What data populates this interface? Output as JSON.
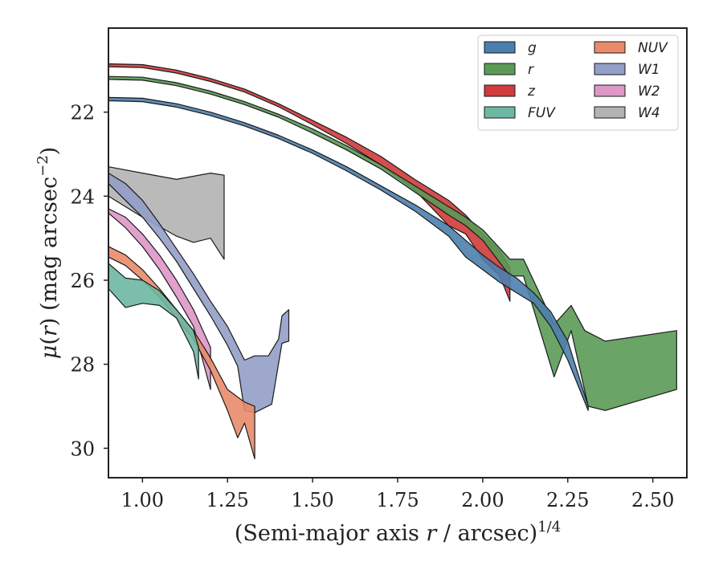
{
  "chart_data": {
    "type": "area",
    "xlabel": "(Semi-major axis r / arcsec)",
    "xlabel_parts": {
      "pre": "(Semi-major axis ",
      "var": "r",
      "post": " / arcsec)",
      "sup": "1/4"
    },
    "ylabel_parts": {
      "mu": "μ",
      "var": "r",
      "post": " (mag arcsec",
      "sup": "−2",
      "close": ")"
    },
    "xlim": [
      0.9,
      2.6
    ],
    "ylim": [
      30.7,
      20.0
    ],
    "y_inverted": true,
    "xticks": [
      "1.00",
      "1.25",
      "1.50",
      "1.75",
      "2.00",
      "2.25",
      "2.50"
    ],
    "yticks": [
      "22",
      "24",
      "26",
      "28",
      "30"
    ],
    "legend_position": "top-right",
    "series": [
      {
        "name": "g",
        "color": "#4c7fad",
        "upper": [
          [
            0.9,
            21.65
          ],
          [
            1.0,
            21.67
          ],
          [
            1.1,
            21.8
          ],
          [
            1.2,
            22.0
          ],
          [
            1.3,
            22.25
          ],
          [
            1.4,
            22.55
          ],
          [
            1.5,
            22.9
          ],
          [
            1.6,
            23.3
          ],
          [
            1.7,
            23.75
          ],
          [
            1.8,
            24.2
          ],
          [
            1.9,
            24.7
          ],
          [
            1.95,
            25.05
          ],
          [
            2.0,
            25.4
          ],
          [
            2.05,
            25.7
          ],
          [
            2.1,
            25.95
          ],
          [
            2.15,
            26.3
          ],
          [
            2.2,
            26.75
          ],
          [
            2.25,
            27.45
          ],
          [
            2.31,
            29.0
          ]
        ],
        "lower": [
          [
            0.9,
            21.73
          ],
          [
            1.0,
            21.75
          ],
          [
            1.1,
            21.88
          ],
          [
            1.2,
            22.08
          ],
          [
            1.3,
            22.33
          ],
          [
            1.4,
            22.63
          ],
          [
            1.5,
            22.98
          ],
          [
            1.6,
            23.4
          ],
          [
            1.7,
            23.85
          ],
          [
            1.8,
            24.35
          ],
          [
            1.9,
            24.95
          ],
          [
            1.95,
            25.45
          ],
          [
            2.0,
            25.75
          ],
          [
            2.05,
            26.05
          ],
          [
            2.1,
            26.3
          ],
          [
            2.15,
            26.55
          ],
          [
            2.2,
            27.1
          ],
          [
            2.25,
            27.9
          ],
          [
            2.31,
            29.1
          ]
        ]
      },
      {
        "name": "r",
        "color": "#5a9a56",
        "upper": [
          [
            0.9,
            21.15
          ],
          [
            1.0,
            21.17
          ],
          [
            1.1,
            21.3
          ],
          [
            1.2,
            21.5
          ],
          [
            1.3,
            21.75
          ],
          [
            1.4,
            22.05
          ],
          [
            1.5,
            22.4
          ],
          [
            1.6,
            22.8
          ],
          [
            1.7,
            23.25
          ],
          [
            1.8,
            23.75
          ],
          [
            1.9,
            24.25
          ],
          [
            1.95,
            24.5
          ],
          [
            2.0,
            24.8
          ],
          [
            2.08,
            25.5
          ],
          [
            2.12,
            25.5
          ],
          [
            2.21,
            27.05
          ],
          [
            2.26,
            26.6
          ],
          [
            2.3,
            27.2
          ],
          [
            2.36,
            27.45
          ],
          [
            2.57,
            27.2
          ]
        ],
        "lower": [
          [
            0.9,
            21.22
          ],
          [
            1.0,
            21.24
          ],
          [
            1.1,
            21.37
          ],
          [
            1.2,
            21.57
          ],
          [
            1.3,
            21.82
          ],
          [
            1.4,
            22.12
          ],
          [
            1.5,
            22.5
          ],
          [
            1.6,
            22.9
          ],
          [
            1.7,
            23.35
          ],
          [
            1.8,
            23.9
          ],
          [
            1.9,
            24.45
          ],
          [
            1.95,
            24.7
          ],
          [
            2.0,
            25.05
          ],
          [
            2.08,
            25.9
          ],
          [
            2.12,
            25.9
          ],
          [
            2.21,
            28.3
          ],
          [
            2.26,
            27.2
          ],
          [
            2.31,
            29.0
          ],
          [
            2.36,
            29.1
          ],
          [
            2.57,
            28.6
          ]
        ]
      },
      {
        "name": "z",
        "color": "#d03b3b",
        "upper": [
          [
            0.9,
            20.85
          ],
          [
            1.0,
            20.87
          ],
          [
            1.1,
            21.0
          ],
          [
            1.2,
            21.2
          ],
          [
            1.3,
            21.45
          ],
          [
            1.4,
            21.8
          ],
          [
            1.5,
            22.2
          ],
          [
            1.6,
            22.6
          ],
          [
            1.7,
            23.05
          ],
          [
            1.8,
            23.6
          ],
          [
            1.9,
            24.1
          ],
          [
            1.95,
            24.45
          ],
          [
            2.0,
            24.9
          ],
          [
            2.05,
            25.3
          ],
          [
            2.08,
            25.7
          ]
        ],
        "lower": [
          [
            0.9,
            20.92
          ],
          [
            1.0,
            20.94
          ],
          [
            1.1,
            21.07
          ],
          [
            1.2,
            21.27
          ],
          [
            1.3,
            21.52
          ],
          [
            1.4,
            21.87
          ],
          [
            1.5,
            22.3
          ],
          [
            1.6,
            22.75
          ],
          [
            1.7,
            23.25
          ],
          [
            1.8,
            23.85
          ],
          [
            1.9,
            24.7
          ],
          [
            1.95,
            24.9
          ],
          [
            2.0,
            25.5
          ],
          [
            2.05,
            25.9
          ],
          [
            2.08,
            26.5
          ]
        ]
      },
      {
        "name": "FUV",
        "color": "#6db8a2",
        "upper": [
          [
            0.9,
            25.6
          ],
          [
            0.95,
            25.95
          ],
          [
            1.0,
            26.0
          ],
          [
            1.05,
            26.25
          ],
          [
            1.1,
            26.7
          ],
          [
            1.15,
            27.2
          ],
          [
            1.165,
            27.6
          ]
        ],
        "lower": [
          [
            0.9,
            26.2
          ],
          [
            0.95,
            26.65
          ],
          [
            1.0,
            26.55
          ],
          [
            1.05,
            26.6
          ],
          [
            1.1,
            26.9
          ],
          [
            1.15,
            27.7
          ],
          [
            1.165,
            28.35
          ]
        ]
      },
      {
        "name": "NUV",
        "color": "#e98b6a",
        "upper": [
          [
            0.9,
            25.2
          ],
          [
            0.95,
            25.4
          ],
          [
            1.0,
            25.75
          ],
          [
            1.05,
            26.2
          ],
          [
            1.1,
            26.7
          ],
          [
            1.15,
            27.2
          ],
          [
            1.2,
            27.85
          ],
          [
            1.25,
            28.6
          ],
          [
            1.3,
            28.9
          ],
          [
            1.33,
            29.0
          ]
        ],
        "lower": [
          [
            0.9,
            25.45
          ],
          [
            0.95,
            25.65
          ],
          [
            1.0,
            26.0
          ],
          [
            1.05,
            26.4
          ],
          [
            1.1,
            26.9
          ],
          [
            1.15,
            27.4
          ],
          [
            1.2,
            28.15
          ],
          [
            1.25,
            29.1
          ],
          [
            1.28,
            29.75
          ],
          [
            1.3,
            29.4
          ],
          [
            1.33,
            30.25
          ]
        ]
      },
      {
        "name": "W1",
        "color": "#929fc6",
        "upper": [
          [
            0.9,
            23.45
          ],
          [
            0.95,
            23.7
          ],
          [
            1.0,
            24.1
          ],
          [
            1.05,
            24.65
          ],
          [
            1.1,
            25.25
          ],
          [
            1.15,
            25.85
          ],
          [
            1.2,
            26.5
          ],
          [
            1.25,
            27.1
          ],
          [
            1.3,
            27.9
          ],
          [
            1.33,
            27.8
          ],
          [
            1.37,
            27.8
          ],
          [
            1.4,
            27.4
          ],
          [
            1.41,
            26.85
          ],
          [
            1.43,
            26.7
          ]
        ],
        "lower": [
          [
            0.9,
            23.7
          ],
          [
            0.95,
            24.1
          ],
          [
            1.0,
            24.5
          ],
          [
            1.05,
            25.0
          ],
          [
            1.1,
            25.55
          ],
          [
            1.15,
            26.2
          ],
          [
            1.2,
            26.85
          ],
          [
            1.25,
            27.55
          ],
          [
            1.28,
            28.05
          ],
          [
            1.3,
            29.1
          ],
          [
            1.33,
            29.15
          ],
          [
            1.38,
            28.95
          ],
          [
            1.41,
            27.5
          ],
          [
            1.43,
            27.45
          ]
        ]
      },
      {
        "name": "W2",
        "color": "#de97c7",
        "upper": [
          [
            0.9,
            24.3
          ],
          [
            0.95,
            24.5
          ],
          [
            1.0,
            24.9
          ],
          [
            1.05,
            25.4
          ],
          [
            1.1,
            26.0
          ],
          [
            1.15,
            26.7
          ],
          [
            1.2,
            27.6
          ]
        ],
        "lower": [
          [
            0.9,
            24.4
          ],
          [
            0.95,
            24.75
          ],
          [
            1.0,
            25.2
          ],
          [
            1.05,
            25.75
          ],
          [
            1.1,
            26.4
          ],
          [
            1.15,
            27.1
          ],
          [
            1.2,
            28.6
          ]
        ]
      },
      {
        "name": "W4",
        "color": "#b3b3b3",
        "upper": [
          [
            0.9,
            23.3
          ],
          [
            1.0,
            23.45
          ],
          [
            1.1,
            23.6
          ],
          [
            1.2,
            23.45
          ],
          [
            1.24,
            23.5
          ]
        ],
        "lower": [
          [
            0.9,
            24.0
          ],
          [
            1.0,
            24.5
          ],
          [
            1.1,
            24.95
          ],
          [
            1.15,
            25.1
          ],
          [
            1.2,
            25.0
          ],
          [
            1.24,
            25.5
          ]
        ]
      }
    ]
  }
}
